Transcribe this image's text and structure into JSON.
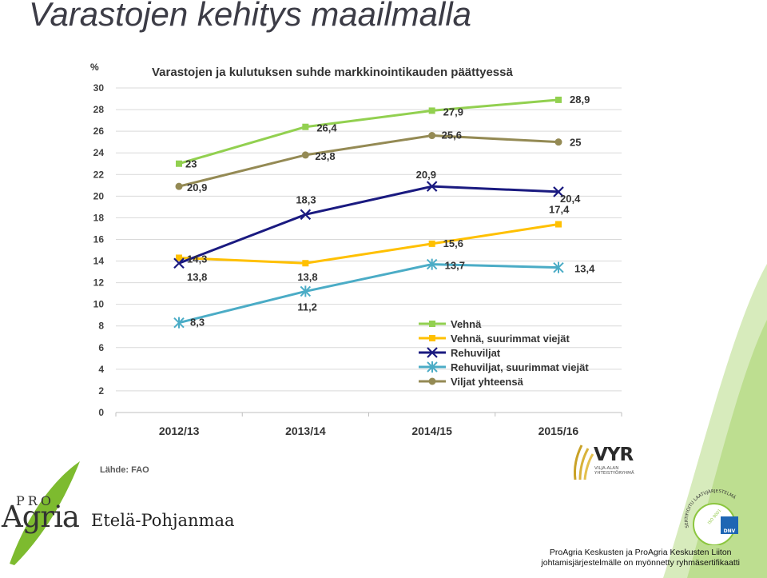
{
  "slide": {
    "title": "Varastojen kehitys maailmalla"
  },
  "source_label": "Lähde: FAO",
  "colors": {
    "green_band": "#8cc63f",
    "vehna": "#92d050",
    "vehna_suurimmat": "#ffc000",
    "rehuviljat": "#1a1a80",
    "rehuviljat_suurimmat": "#4bacc6",
    "viljat_yhteensa": "#948a54"
  },
  "logos": {
    "vyr_name": "VYR",
    "vyr_subtitle": "VILJA-ALAN YHTEISTYÖRYHMÄ",
    "proagria_pro": "PRO",
    "proagria_agria": "Agria",
    "proagria_region": "Etelä-Pohjanmaa",
    "cert_arc_text": "SERTIFIOITU LAATUJÄRJESTELMÄ",
    "cert_iso": "ISO 9001",
    "cert_dnv": "DNV"
  },
  "footer": {
    "line1": "ProAgria Keskusten ja ProAgria Keskusten Liiton",
    "line2": "johtamisjärjestelmälle on myönnetty ryhmäsertifikaatti"
  },
  "chart_data": {
    "type": "line",
    "title": "Varastojen ja kulutuksen suhde markkinointikauden päättyessä",
    "ylabel": "%",
    "xlabel": "",
    "categories": [
      "2012/13",
      "2013/14",
      "2014/15",
      "2015/16"
    ],
    "ylim": [
      0,
      30
    ],
    "yticks": [
      0,
      2,
      4,
      6,
      8,
      10,
      12,
      14,
      16,
      18,
      20,
      22,
      24,
      26,
      28,
      30
    ],
    "grid": true,
    "legend_position": "bottom-right",
    "series": [
      {
        "name": "Vehnä",
        "values": [
          23,
          26.4,
          27.9,
          28.9
        ],
        "labels": [
          "23",
          "26,4",
          "27,9",
          "28,9"
        ],
        "color": "#92d050",
        "marker": "square"
      },
      {
        "name": "Vehnä, suurimmat viejät",
        "values": [
          14.3,
          13.8,
          15.6,
          17.4
        ],
        "labels": [
          "14,3",
          "13,8",
          "15,6",
          "17,4"
        ],
        "color": "#ffc000",
        "marker": "square"
      },
      {
        "name": "Rehuviljat",
        "values": [
          13.8,
          18.3,
          20.9,
          20.4
        ],
        "labels": [
          "13,8",
          "18,3",
          "20,9",
          "20,4"
        ],
        "color": "#1a1a80",
        "marker": "x"
      },
      {
        "name": "Rehuviljat, suurimmat viejät",
        "values": [
          8.3,
          11.2,
          13.7,
          13.4
        ],
        "labels": [
          "8,3",
          "11,2",
          "13,7",
          "13,4"
        ],
        "color": "#4bacc6",
        "marker": "star"
      },
      {
        "name": "Viljat yhteensä",
        "values": [
          20.9,
          23.8,
          25.6,
          25
        ],
        "labels": [
          "20,9",
          "23,8",
          "25,6",
          "25"
        ],
        "color": "#948a54",
        "marker": "circle"
      }
    ]
  }
}
